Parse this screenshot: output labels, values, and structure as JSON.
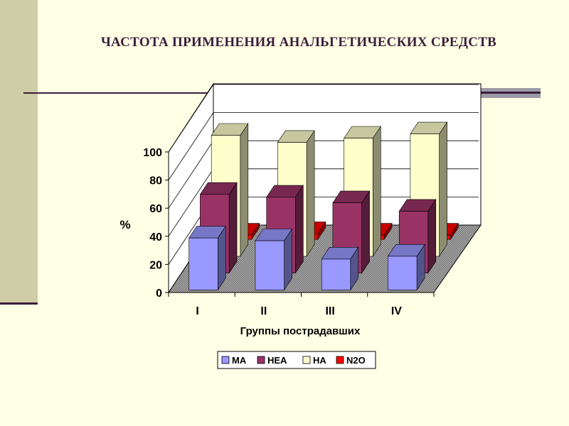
{
  "slide": {
    "title": "ЧАСТОТА ПРИМЕНЕНИЯ АНАЛЬГЕТИЧЕСКИХ  СРЕДСТВ",
    "colors": {
      "background": "#FFFFE5",
      "band": "#CFCDA5",
      "rule": "#3B1E3A"
    }
  },
  "chart_data": {
    "type": "bar",
    "style": "3d-clustered-depth",
    "title": "",
    "xlabel": "Группы пострадавших",
    "ylabel": "%",
    "categories": [
      "I",
      "II",
      "III",
      "IV"
    ],
    "yticks": [
      0,
      20,
      40,
      60,
      80,
      100
    ],
    "ylim": [
      0,
      100
    ],
    "grid": true,
    "legend_position": "bottom",
    "series": [
      {
        "name": "МА",
        "color": "#9999FF",
        "values": [
          37,
          35,
          22,
          24
        ]
      },
      {
        "name": "НЕА",
        "color": "#993366",
        "values": [
          56,
          54,
          50,
          44
        ]
      },
      {
        "name": "НА",
        "color": "#FFFFCC",
        "values": [
          86,
          81,
          84,
          87
        ]
      },
      {
        "name": "N2O",
        "color": "#FF0000",
        "values": [
          3,
          4,
          3,
          3
        ]
      }
    ]
  }
}
